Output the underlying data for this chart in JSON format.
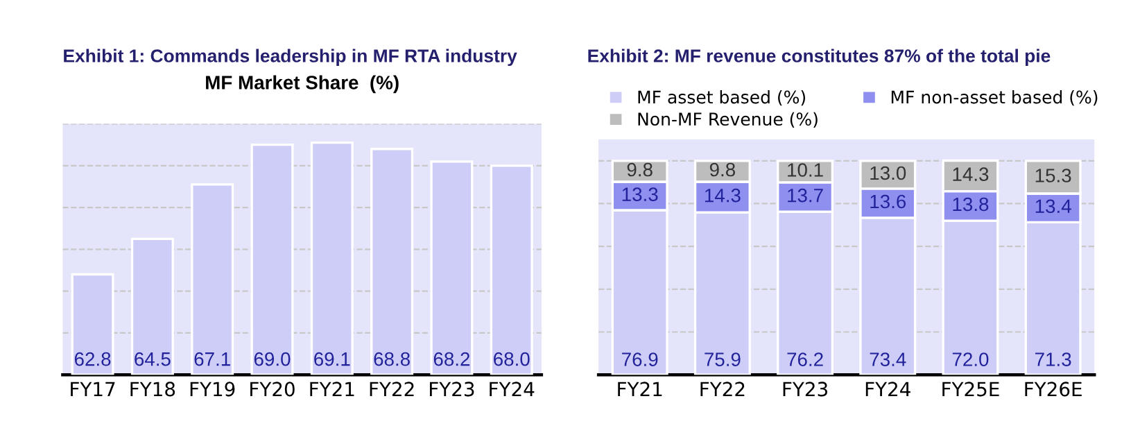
{
  "chart_data": [
    {
      "type": "bar",
      "title": "Exhibit 1: Commands leadership in MF RTA industry",
      "subtitle": "MF Market Share  (%)",
      "categories": [
        "FY17",
        "FY18",
        "FY19",
        "FY20",
        "FY21",
        "FY22",
        "FY23",
        "FY24"
      ],
      "values": [
        62.8,
        64.5,
        67.1,
        69.0,
        69.1,
        68.8,
        68.2,
        68.0
      ],
      "color": "#cdcdf8",
      "value_labels": [
        "62.8",
        "64.5",
        "67.1",
        "69.0",
        "69.1",
        "68.8",
        "68.2",
        "68.0"
      ],
      "ylim": [
        58,
        70
      ],
      "yticks": [
        {
          "value": 58,
          "label": null
        },
        {
          "value": 60,
          "label": null
        },
        {
          "value": 62,
          "label": null
        },
        {
          "value": 64,
          "label": null
        },
        {
          "value": 66,
          "label": null
        },
        {
          "value": 68,
          "label": null
        },
        {
          "value": 70,
          "label": null
        }
      ],
      "grid": "y",
      "tick_labels": "x"
    },
    {
      "type": "bar",
      "title": "Exhibit 2: MF revenue constitutes 87% of the total pie",
      "stacked": true,
      "categories": [
        "FY21",
        "FY22",
        "FY23",
        "FY24",
        "FY25E",
        "FY26E"
      ],
      "series": [
        {
          "name": "MF asset based (%)",
          "color": "#cdcdf8",
          "values": [
            76.9,
            75.9,
            76.2,
            73.4,
            72.0,
            71.3
          ],
          "value_labels": [
            "76.9",
            "75.9",
            "76.2",
            "73.4",
            "72.0",
            "71.3"
          ]
        },
        {
          "name": "MF non-asset based (%)",
          "color": "#8f8ff0",
          "values": [
            13.3,
            14.3,
            13.7,
            13.6,
            13.8,
            13.4
          ],
          "value_labels": [
            "13.3",
            "14.3",
            "13.7",
            "13.6",
            "13.8",
            "13.4"
          ]
        },
        {
          "name": "Non-MF Revenue (%)",
          "color": "#bdbdbd",
          "values": [
            9.8,
            9.8,
            10.1,
            13.0,
            14.3,
            15.3
          ],
          "value_labels": [
            "9.8",
            "9.8",
            "10.1",
            "13.0",
            "14.3",
            "15.3"
          ]
        }
      ],
      "ylim": [
        0,
        110
      ],
      "yticks": [
        {
          "value": 0,
          "label": null
        },
        {
          "value": 20,
          "label": null
        },
        {
          "value": 40,
          "label": null
        },
        {
          "value": 60,
          "label": null
        },
        {
          "value": 80,
          "label": null
        },
        {
          "value": 100,
          "label": null
        }
      ],
      "grid": "y",
      "tick_labels": "x",
      "legend": "top"
    }
  ]
}
